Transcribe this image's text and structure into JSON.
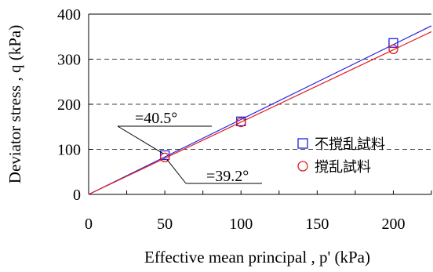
{
  "chart_data": {
    "type": "scatter",
    "title": "",
    "xlabel": "Effective mean principal , p' (kPa)",
    "ylabel": "Deviator stress , q (kPa)",
    "xlim": [
      0,
      225
    ],
    "ylim": [
      0,
      400
    ],
    "x_ticks": [
      0,
      50,
      100,
      150,
      200
    ],
    "y_ticks": [
      0,
      100,
      200,
      300,
      400
    ],
    "x_tick_labels": [
      "0",
      "50",
      "100",
      "150",
      "200"
    ],
    "y_tick_labels": [
      "0",
      "100",
      "200",
      "300",
      "400"
    ],
    "grid": "horizontal dashed",
    "legend_position": "center-right",
    "series": [
      {
        "name": "不撹乱試料",
        "marker": "square",
        "color": "#2020e0",
        "x": [
          50,
          100,
          200
        ],
        "y": [
          87,
          162,
          336
        ],
        "fit_line": {
          "x": [
            0,
            225
          ],
          "y": [
            0,
            374
          ]
        }
      },
      {
        "name": "撹乱試料",
        "marker": "circle",
        "color": "#e02020",
        "x": [
          50,
          100,
          200
        ],
        "y": [
          82,
          160,
          322
        ],
        "fit_line": {
          "x": [
            0,
            225
          ],
          "y": [
            0,
            361
          ]
        }
      }
    ],
    "annotations": [
      {
        "text": "=40.5°",
        "points_to": [
          50,
          87
        ]
      },
      {
        "text": "=39.2°",
        "points_to": [
          50,
          82
        ]
      }
    ]
  }
}
